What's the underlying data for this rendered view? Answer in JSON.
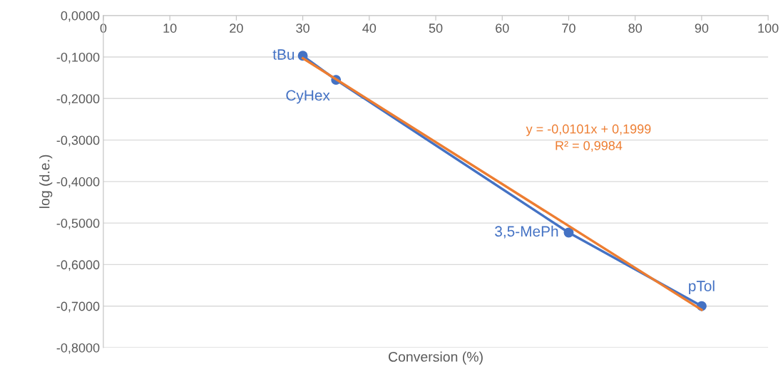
{
  "chart_data": {
    "type": "line",
    "xlabel": "Conversion (%)",
    "ylabel": "log (d.e.)",
    "xlim": [
      0,
      100
    ],
    "xticks": [
      0,
      10,
      20,
      30,
      40,
      50,
      60,
      70,
      80,
      90,
      100
    ],
    "ylim": [
      -0.8,
      0
    ],
    "yticks": [
      {
        "value": 0,
        "label": "0,0000"
      },
      {
        "value": -0.1,
        "label": "-0,1000"
      },
      {
        "value": -0.2,
        "label": "-0,2000"
      },
      {
        "value": -0.3,
        "label": "-0,3000"
      },
      {
        "value": -0.4,
        "label": "-0,4000"
      },
      {
        "value": -0.5,
        "label": "-0,5000"
      },
      {
        "value": -0.6,
        "label": "-0,6000"
      },
      {
        "value": -0.7,
        "label": "-0,7000"
      },
      {
        "value": -0.8,
        "label": "-0,8000"
      }
    ],
    "grid": "y",
    "legend": false,
    "series": [
      {
        "color": "#4472c4",
        "marker": "circle",
        "x": [
          30,
          35,
          70,
          90
        ],
        "values": [
          -0.097,
          -0.155,
          -0.523,
          -0.7
        ]
      },
      {
        "color": "#ed7d31",
        "marker": "none",
        "x": [
          30,
          90
        ],
        "values": [
          -0.103,
          -0.709
        ]
      }
    ],
    "annotations": [
      {
        "text": "tBu",
        "x": 30,
        "y": -0.097
      },
      {
        "text": "CyHex",
        "x": 35,
        "y": -0.155
      },
      {
        "text": "3,5-MePh",
        "x": 70,
        "y": -0.523
      },
      {
        "text": "pTol",
        "x": 90,
        "y": -0.7
      },
      "y = -0,0101x + 0,1999\nR² = 0,9984"
    ]
  }
}
